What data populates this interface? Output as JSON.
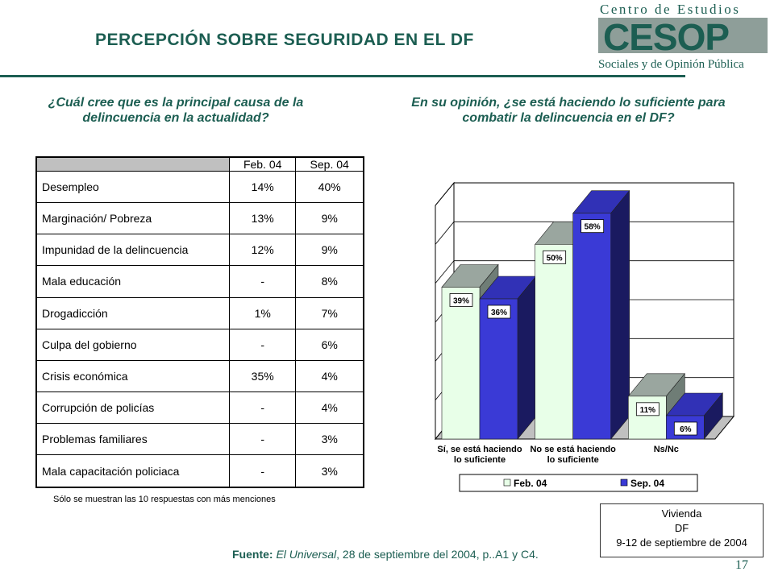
{
  "header": {
    "title": "PERCEPCIÓN SOBRE SEGURIDAD EN EL DF"
  },
  "logo": {
    "line1": "Centro de Estudios",
    "mark": "CESOP",
    "line2": "Sociales y de Opinión Pública",
    "color": "#1c5e52"
  },
  "left_panel": {
    "question": "¿Cuál cree que es la principal causa de la delincuencia en la actualidad?",
    "table": {
      "columns": [
        "Feb. 04",
        "Sep. 04"
      ],
      "rows": [
        {
          "label": "Desempleo",
          "feb": "14%",
          "sep": "40%"
        },
        {
          "label": "Marginación/ Pobreza",
          "feb": "13%",
          "sep": "9%"
        },
        {
          "label": "Impunidad de la delincuencia",
          "feb": "12%",
          "sep": "9%"
        },
        {
          "label": "Mala educación",
          "feb": "-",
          "sep": "8%"
        },
        {
          "label": "Drogadicción",
          "feb": "1%",
          "sep": "7%"
        },
        {
          "label": "Culpa del gobierno",
          "feb": "-",
          "sep": "6%"
        },
        {
          "label": "Crisis económica",
          "feb": "35%",
          "sep": "4%"
        },
        {
          "label": "Corrupción de policías",
          "feb": "-",
          "sep": "4%"
        },
        {
          "label": "Problemas familiares",
          "feb": "-",
          "sep": "3%"
        },
        {
          "label": "Mala capacitación policiaca",
          "feb": "-",
          "sep": "3%"
        }
      ]
    },
    "note": "Sólo se muestran las 10 respuestas con más menciones"
  },
  "right_panel": {
    "question": "En su opinión, ¿se está haciendo lo suficiente para combatir la delincuencia en el DF?"
  },
  "chart_data": {
    "type": "bar",
    "categories": [
      [
        "Sí, se está haciendo",
        "lo suficiente"
      ],
      [
        "No se está haciendo",
        "lo suficiente"
      ],
      [
        "Ns/Nc"
      ]
    ],
    "series": [
      {
        "name": "Feb. 04",
        "values": [
          39,
          50,
          11
        ],
        "labels": [
          "39%",
          "50%",
          "11%"
        ],
        "color": "#e8ffe8"
      },
      {
        "name": "Sep. 04",
        "values": [
          36,
          58,
          6
        ],
        "labels": [
          "36%",
          "58%",
          "6%"
        ],
        "color": "#3a3ad6"
      }
    ],
    "ylim": [
      0,
      60
    ],
    "grid": true,
    "legend_position": "bottom"
  },
  "infobox": {
    "line1": "Vivienda",
    "line2": "DF",
    "line3": "9-12 de septiembre de 2004"
  },
  "source": {
    "prefix": "Fuente:",
    "publication": "El Universal",
    "rest": ", 28  de septiembre del 2004, p..A1 y C4."
  },
  "page_number": "17"
}
